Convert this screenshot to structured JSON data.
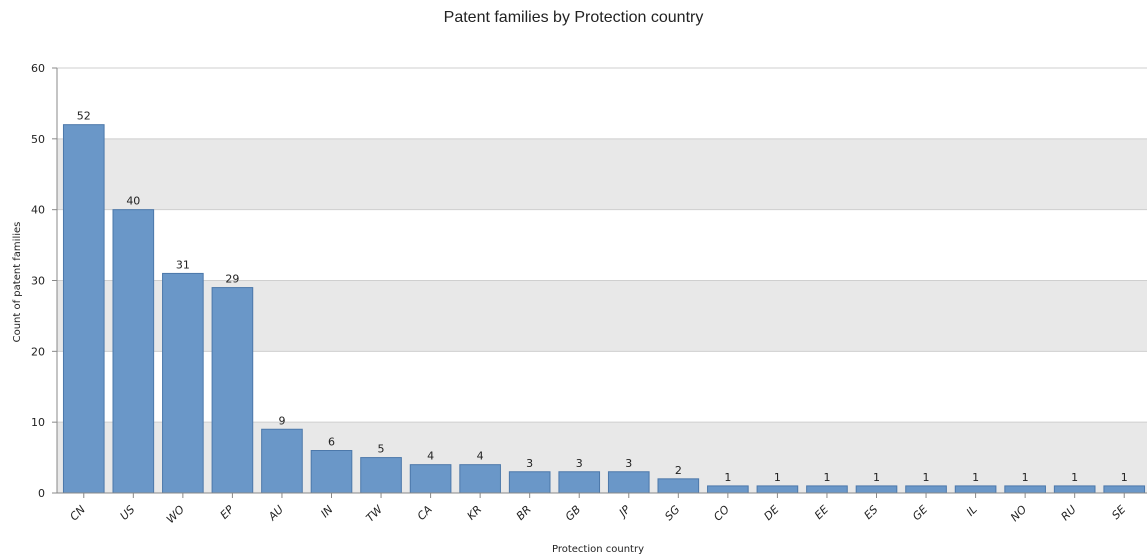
{
  "chart_data": {
    "type": "bar",
    "title": "Patent families by Protection country",
    "xlabel": "Protection country",
    "ylabel": "Count of patent families",
    "categories": [
      "CN",
      "US",
      "WO",
      "EP",
      "AU",
      "IN",
      "TW",
      "CA",
      "KR",
      "BR",
      "GB",
      "JP",
      "SG",
      "CO",
      "DE",
      "EE",
      "ES",
      "GE",
      "IL",
      "NO",
      "RU",
      "SE"
    ],
    "values": [
      52,
      40,
      31,
      29,
      9,
      6,
      5,
      4,
      4,
      3,
      3,
      3,
      2,
      1,
      1,
      1,
      1,
      1,
      1,
      1,
      1,
      1
    ],
    "ylim": [
      0,
      60
    ],
    "yticks": [
      0,
      10,
      20,
      30,
      40,
      50,
      60
    ],
    "grid": "horizontal alternating bands",
    "legend": "none",
    "bar_color": "#6a97c8",
    "bar_edge_color": "#4c78aa",
    "band_color": "#e8e8e8"
  }
}
